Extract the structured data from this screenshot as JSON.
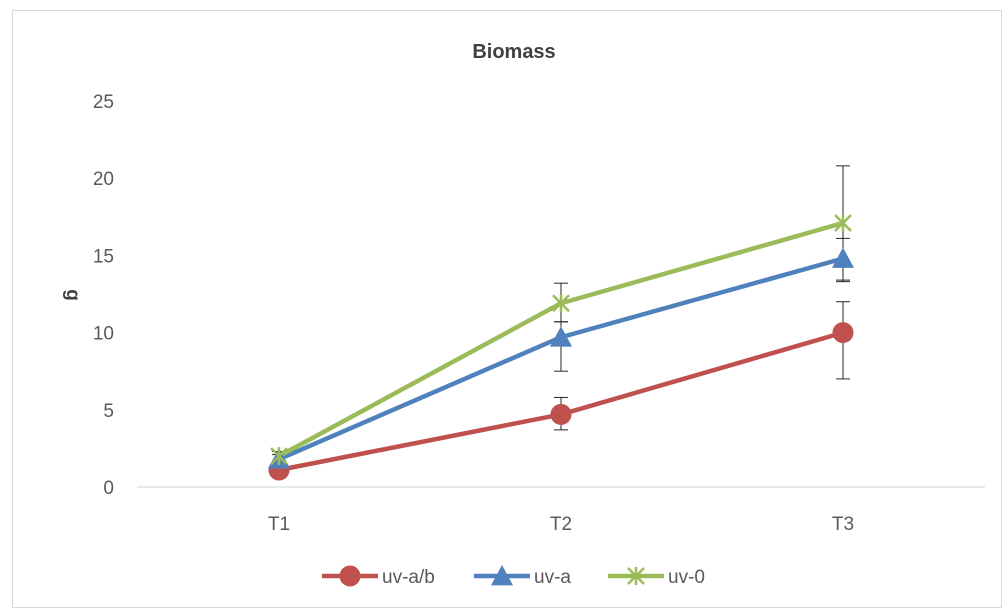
{
  "chart_data": {
    "type": "line",
    "title": "Biomass",
    "xlabel": "",
    "ylabel": "g",
    "categories": [
      "T1",
      "T2",
      "T3"
    ],
    "ylim": [
      0,
      25
    ],
    "yticks": [
      0,
      5,
      10,
      15,
      20,
      25
    ],
    "grid": false,
    "legend_position": "bottom",
    "series": [
      {
        "name": "uv-a/b",
        "color": "#c0504d",
        "marker": "circle",
        "values": [
          1.1,
          4.7,
          10.0
        ],
        "error": [
          [
            0.3,
            0.3
          ],
          [
            1.0,
            1.1
          ],
          [
            3.0,
            2.0
          ]
        ]
      },
      {
        "name": "uv-a",
        "color": "#4f81bd",
        "marker": "triangle",
        "values": [
          1.8,
          9.7,
          14.8
        ],
        "error": [
          [
            0.3,
            0.3
          ],
          [
            2.2,
            1.0
          ],
          [
            1.5,
            1.3
          ]
        ]
      },
      {
        "name": "uv-0",
        "color": "#9bbb59",
        "marker": "x-star",
        "values": [
          2.0,
          11.9,
          17.1
        ],
        "error": [
          [
            0.3,
            0.3
          ],
          [
            1.2,
            1.3
          ],
          [
            3.7,
            3.7
          ]
        ]
      }
    ]
  }
}
